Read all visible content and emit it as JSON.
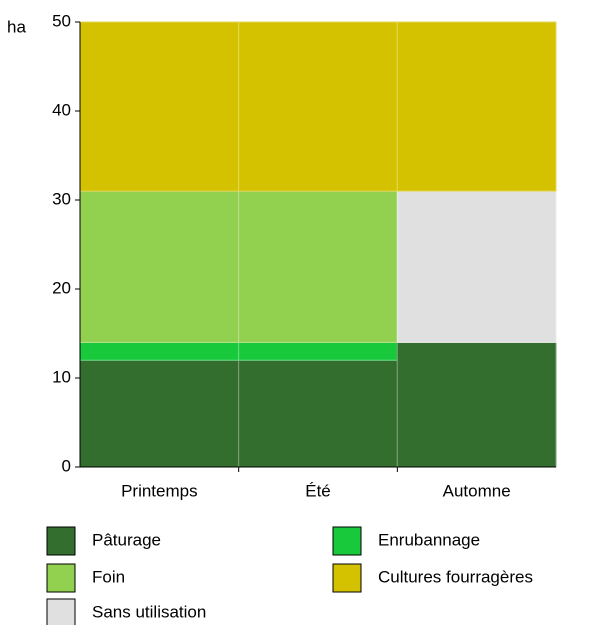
{
  "chart_data": {
    "type": "stacked-bar",
    "y_label": "ha",
    "categories": [
      "Printemps",
      "Été",
      "Automne"
    ],
    "series": [
      {
        "name": "Pâturage",
        "color": "#336e2e",
        "values": [
          12,
          12,
          14
        ]
      },
      {
        "name": "Enrubannage",
        "color": "#17c93b",
        "values": [
          2,
          2,
          0
        ]
      },
      {
        "name": "Foin",
        "color": "#92d050",
        "values": [
          17,
          17,
          0
        ]
      },
      {
        "name": "Sans utilisation",
        "color": "#e0e0e0",
        "values": [
          0,
          0,
          17
        ]
      },
      {
        "name": "Cultures fourragères",
        "color": "#d4c200",
        "values": [
          19,
          19,
          19
        ]
      }
    ],
    "ylim": [
      0,
      50
    ],
    "yticks": [
      0,
      10,
      20,
      30,
      40,
      50
    ]
  }
}
